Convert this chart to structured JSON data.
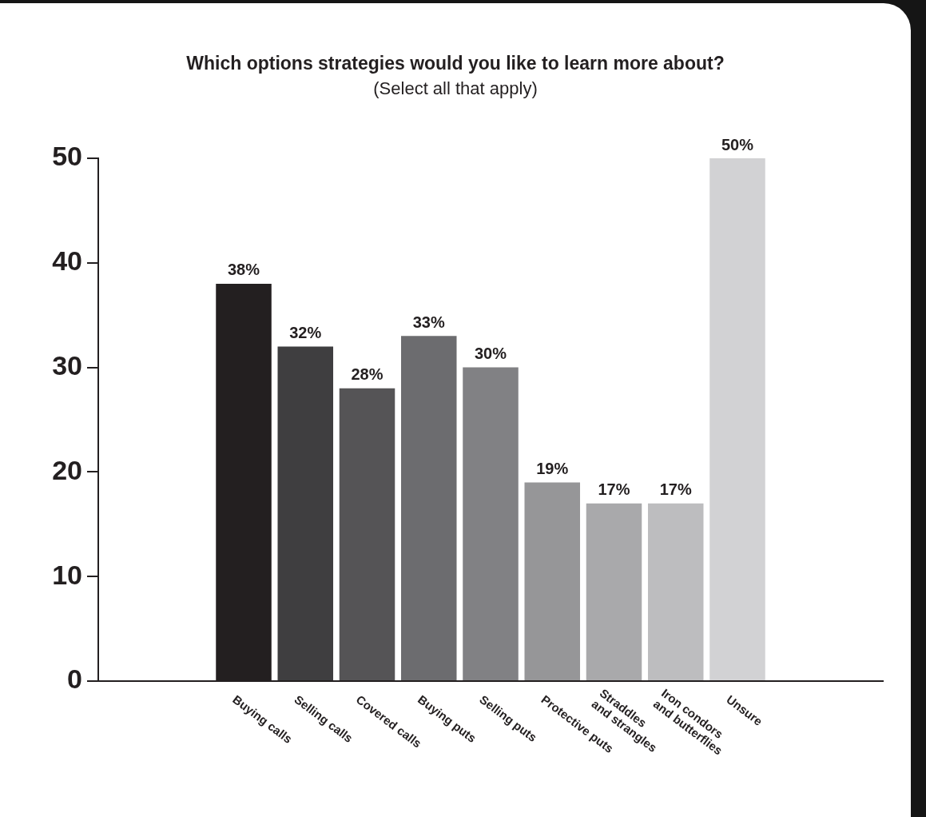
{
  "chart_data": {
    "type": "bar",
    "title": "Which options strategies would you like to learn more about?",
    "subtitle": "(Select all that apply)",
    "categories": [
      "Buying calls",
      "Selling calls",
      "Covered calls",
      "Buying puts",
      "Selling puts",
      "Protective puts",
      "Straddles\nand strangles",
      "Iron condors\nand butterflies",
      "Unsure"
    ],
    "values": [
      38,
      32,
      28,
      33,
      30,
      19,
      17,
      17,
      50
    ],
    "value_labels": [
      "38%",
      "32%",
      "28%",
      "33%",
      "30%",
      "19%",
      "17%",
      "17%",
      "50%"
    ],
    "colors": [
      "#231f20",
      "#3f3e40",
      "#555456",
      "#6c6c6f",
      "#818184",
      "#969698",
      "#a9a9ab",
      "#bdbdbf",
      "#d2d2d4"
    ],
    "ylim": [
      0,
      50
    ],
    "yticks": [
      0,
      10,
      20,
      30,
      40,
      50
    ]
  }
}
